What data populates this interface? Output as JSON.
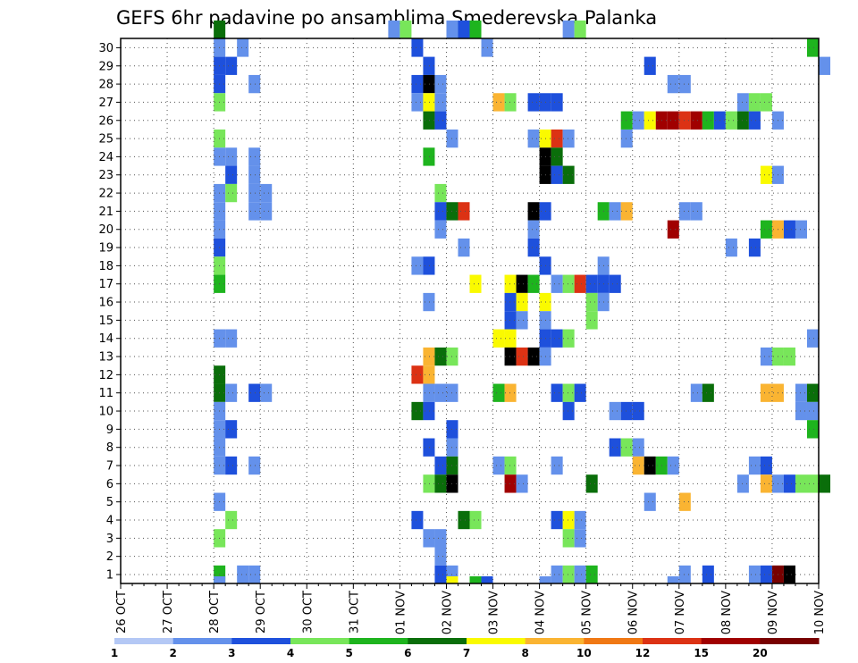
{
  "chart_data": {
    "type": "heatmap",
    "title": "GEFS 6hr padavine po ansamblima Smederevska Palanka",
    "xlabel": "",
    "ylabel": "",
    "y_range": [
      0,
      30
    ],
    "y_ticks": [
      "1",
      "2",
      "3",
      "4",
      "5",
      "6",
      "7",
      "8",
      "9",
      "10",
      "11",
      "12",
      "13",
      "14",
      "15",
      "16",
      "17",
      "18",
      "19",
      "20",
      "21",
      "22",
      "23",
      "24",
      "25",
      "26",
      "27",
      "28",
      "29",
      "30"
    ],
    "x_start_day": "26 OCT",
    "x_steps_per_day": 4,
    "x_ticks": [
      "26 OCT",
      "27 OCT",
      "28 OCT",
      "29 OCT",
      "30 OCT",
      "31 OCT",
      "01 NOV",
      "02 NOV",
      "03 NOV",
      "04 NOV",
      "05 NOV",
      "06 NOV",
      "07 NOV",
      "08 NOV",
      "09 NOV",
      "10 NOV"
    ],
    "grid": true,
    "colorbar": {
      "labels": [
        "1",
        "2",
        "3",
        "4",
        "5",
        "6",
        "7",
        "8",
        "10",
        "12",
        "15",
        "20"
      ],
      "colors": [
        "#b4c8f5",
        "#6491eb",
        "#1e50dc",
        "#78e65a",
        "#1eb41e",
        "#0a6e0a",
        "#fafa00",
        "#fab432",
        "#f07814",
        "#dc3214",
        "#a00000",
        "#780000"
      ]
    },
    "cells": [
      [
        8,
        30,
        5
      ],
      [
        23,
        30,
        1
      ],
      [
        24,
        30,
        3
      ],
      [
        28,
        30,
        1
      ],
      [
        29,
        30,
        2
      ],
      [
        30,
        30,
        4
      ],
      [
        38,
        30,
        1
      ],
      [
        39,
        30,
        3
      ],
      [
        8,
        29,
        1
      ],
      [
        10,
        29,
        1
      ],
      [
        25,
        29,
        2
      ],
      [
        31,
        29,
        1
      ],
      [
        59,
        29,
        4
      ],
      [
        8,
        28,
        2
      ],
      [
        9,
        28,
        2
      ],
      [
        26,
        28,
        2
      ],
      [
        45,
        28,
        2
      ],
      [
        60,
        28,
        1
      ],
      [
        8,
        27,
        2
      ],
      [
        11,
        27,
        1
      ],
      [
        25,
        27,
        2
      ],
      [
        26,
        27,
        13
      ],
      [
        27,
        27,
        1
      ],
      [
        47,
        27,
        1
      ],
      [
        48,
        27,
        1
      ],
      [
        8,
        26,
        3
      ],
      [
        25,
        26,
        1
      ],
      [
        26,
        26,
        6
      ],
      [
        27,
        26,
        1
      ],
      [
        32,
        26,
        7
      ],
      [
        33,
        26,
        3
      ],
      [
        35,
        26,
        2
      ],
      [
        36,
        26,
        2
      ],
      [
        37,
        26,
        2
      ],
      [
        53,
        26,
        1
      ],
      [
        54,
        26,
        3
      ],
      [
        55,
        26,
        3
      ],
      [
        26,
        25,
        5
      ],
      [
        27,
        25,
        2
      ],
      [
        43,
        25,
        4
      ],
      [
        44,
        25,
        1
      ],
      [
        45,
        25,
        6
      ],
      [
        46,
        25,
        10
      ],
      [
        47,
        25,
        10
      ],
      [
        48,
        25,
        9
      ],
      [
        49,
        25,
        10
      ],
      [
        50,
        25,
        4
      ],
      [
        51,
        25,
        2
      ],
      [
        52,
        25,
        3
      ],
      [
        53,
        25,
        5
      ],
      [
        54,
        25,
        2
      ],
      [
        56,
        25,
        1
      ],
      [
        8,
        24,
        3
      ],
      [
        28,
        24,
        1
      ],
      [
        35,
        24,
        1
      ],
      [
        36,
        24,
        6
      ],
      [
        37,
        24,
        9
      ],
      [
        38,
        24,
        1
      ],
      [
        43,
        24,
        1
      ],
      [
        8,
        23,
        1
      ],
      [
        9,
        23,
        1
      ],
      [
        11,
        23,
        1
      ],
      [
        26,
        23,
        4
      ],
      [
        36,
        23,
        14
      ],
      [
        37,
        23,
        5
      ],
      [
        9,
        22,
        2
      ],
      [
        11,
        22,
        1
      ],
      [
        36,
        22,
        14
      ],
      [
        37,
        22,
        2
      ],
      [
        38,
        22,
        5
      ],
      [
        55,
        22,
        6
      ],
      [
        56,
        22,
        1
      ],
      [
        8,
        21,
        1
      ],
      [
        9,
        21,
        3
      ],
      [
        11,
        21,
        1
      ],
      [
        12,
        21,
        1
      ],
      [
        27,
        21,
        3
      ],
      [
        8,
        20,
        1
      ],
      [
        11,
        20,
        1
      ],
      [
        12,
        20,
        1
      ],
      [
        27,
        20,
        2
      ],
      [
        28,
        20,
        5
      ],
      [
        29,
        20,
        9
      ],
      [
        35,
        20,
        13
      ],
      [
        36,
        20,
        2
      ],
      [
        41,
        20,
        4
      ],
      [
        42,
        20,
        1
      ],
      [
        43,
        20,
        7
      ],
      [
        48,
        20,
        1
      ],
      [
        49,
        20,
        1
      ],
      [
        8,
        19,
        1
      ],
      [
        27,
        19,
        1
      ],
      [
        35,
        19,
        1
      ],
      [
        47,
        19,
        10
      ],
      [
        55,
        19,
        4
      ],
      [
        56,
        19,
        7
      ],
      [
        57,
        19,
        2
      ],
      [
        58,
        19,
        1
      ],
      [
        8,
        18,
        2
      ],
      [
        29,
        18,
        1
      ],
      [
        35,
        18,
        2
      ],
      [
        52,
        18,
        1
      ],
      [
        54,
        18,
        2
      ],
      [
        8,
        17,
        3
      ],
      [
        25,
        17,
        1
      ],
      [
        26,
        17,
        2
      ],
      [
        36,
        17,
        2
      ],
      [
        41,
        17,
        1
      ],
      [
        8,
        16,
        4
      ],
      [
        30,
        16,
        6
      ],
      [
        33,
        16,
        6
      ],
      [
        34,
        16,
        13
      ],
      [
        35,
        16,
        4
      ],
      [
        37,
        16,
        1
      ],
      [
        38,
        16,
        3
      ],
      [
        39,
        16,
        9
      ],
      [
        40,
        16,
        2
      ],
      [
        41,
        16,
        2
      ],
      [
        42,
        16,
        2
      ],
      [
        33,
        15,
        2
      ],
      [
        34,
        15,
        6
      ],
      [
        36,
        15,
        6
      ],
      [
        26,
        15,
        1
      ],
      [
        40,
        15,
        3
      ],
      [
        41,
        15,
        1
      ],
      [
        33,
        14,
        2
      ],
      [
        34,
        14,
        1
      ],
      [
        36,
        14,
        1
      ],
      [
        40,
        14,
        3
      ],
      [
        8,
        13,
        1
      ],
      [
        9,
        13,
        1
      ],
      [
        32,
        13,
        6
      ],
      [
        33,
        13,
        6
      ],
      [
        36,
        13,
        2
      ],
      [
        37,
        13,
        2
      ],
      [
        38,
        13,
        3
      ],
      [
        59,
        13,
        1
      ],
      [
        26,
        12,
        7
      ],
      [
        27,
        12,
        5
      ],
      [
        28,
        12,
        3
      ],
      [
        33,
        12,
        12
      ],
      [
        34,
        12,
        9
      ],
      [
        35,
        12,
        14
      ],
      [
        36,
        12,
        1
      ],
      [
        55,
        12,
        1
      ],
      [
        56,
        12,
        3
      ],
      [
        57,
        12,
        3
      ],
      [
        25,
        11,
        9
      ],
      [
        26,
        11,
        7
      ],
      [
        8,
        11,
        5
      ],
      [
        8,
        10,
        5
      ],
      [
        9,
        10,
        1
      ],
      [
        11,
        10,
        2
      ],
      [
        12,
        10,
        1
      ],
      [
        26,
        10,
        1
      ],
      [
        27,
        10,
        1
      ],
      [
        28,
        10,
        1
      ],
      [
        32,
        10,
        4
      ],
      [
        33,
        10,
        7
      ],
      [
        37,
        10,
        2
      ],
      [
        38,
        10,
        3
      ],
      [
        39,
        10,
        2
      ],
      [
        49,
        10,
        1
      ],
      [
        50,
        10,
        5
      ],
      [
        55,
        10,
        7
      ],
      [
        56,
        10,
        7
      ],
      [
        58,
        10,
        1
      ],
      [
        59,
        10,
        5
      ],
      [
        8,
        9,
        1
      ],
      [
        25,
        9,
        5
      ],
      [
        26,
        9,
        2
      ],
      [
        38,
        9,
        2
      ],
      [
        42,
        9,
        1
      ],
      [
        43,
        9,
        2
      ],
      [
        44,
        9,
        2
      ],
      [
        58,
        9,
        1
      ],
      [
        59,
        9,
        1
      ],
      [
        8,
        8,
        1
      ],
      [
        9,
        8,
        2
      ],
      [
        28,
        8,
        2
      ],
      [
        59,
        8,
        4
      ],
      [
        8,
        7,
        1
      ],
      [
        26,
        7,
        2
      ],
      [
        28,
        7,
        1
      ],
      [
        42,
        7,
        2
      ],
      [
        43,
        7,
        3
      ],
      [
        44,
        7,
        1
      ],
      [
        8,
        6,
        1
      ],
      [
        9,
        6,
        2
      ],
      [
        11,
        6,
        1
      ],
      [
        27,
        6,
        2
      ],
      [
        28,
        6,
        5
      ],
      [
        32,
        6,
        1
      ],
      [
        33,
        6,
        3
      ],
      [
        37,
        6,
        1
      ],
      [
        44,
        6,
        7
      ],
      [
        45,
        6,
        14
      ],
      [
        46,
        6,
        4
      ],
      [
        47,
        6,
        1
      ],
      [
        54,
        6,
        1
      ],
      [
        55,
        6,
        2
      ],
      [
        26,
        5,
        3
      ],
      [
        27,
        5,
        5
      ],
      [
        28,
        5,
        13
      ],
      [
        33,
        5,
        10
      ],
      [
        34,
        5,
        1
      ],
      [
        40,
        5,
        5
      ],
      [
        53,
        5,
        1
      ],
      [
        55,
        5,
        7
      ],
      [
        56,
        5,
        1
      ],
      [
        57,
        5,
        2
      ],
      [
        58,
        5,
        3
      ],
      [
        59,
        5,
        3
      ],
      [
        60,
        5,
        5
      ],
      [
        8,
        4,
        1
      ],
      [
        45,
        4,
        1
      ],
      [
        48,
        4,
        7
      ],
      [
        9,
        3,
        3
      ],
      [
        25,
        3,
        2
      ],
      [
        29,
        3,
        5
      ],
      [
        30,
        3,
        3
      ],
      [
        37,
        3,
        2
      ],
      [
        38,
        3,
        6
      ],
      [
        39,
        3,
        1
      ],
      [
        8,
        2,
        3
      ],
      [
        26,
        2,
        1
      ],
      [
        27,
        2,
        1
      ],
      [
        38,
        2,
        3
      ],
      [
        39,
        2,
        1
      ],
      [
        27,
        1,
        1
      ],
      [
        8,
        0,
        4
      ],
      [
        10,
        0,
        1
      ],
      [
        11,
        0,
        1
      ],
      [
        27,
        0,
        2
      ],
      [
        28,
        0,
        1
      ],
      [
        37,
        0,
        1
      ],
      [
        38,
        0,
        3
      ],
      [
        39,
        0,
        1
      ],
      [
        40,
        0,
        4
      ],
      [
        48,
        0,
        1
      ],
      [
        50,
        0,
        2
      ],
      [
        54,
        0,
        1
      ],
      [
        55,
        0,
        2
      ],
      [
        56,
        0,
        11
      ],
      [
        57,
        0,
        12
      ],
      [
        8,
        -1,
        1
      ],
      [
        28,
        -1,
        6
      ],
      [
        30,
        -1,
        4
      ],
      [
        31,
        -1,
        2
      ],
      [
        36,
        -1,
        1
      ],
      [
        47,
        -1,
        1
      ]
    ]
  }
}
